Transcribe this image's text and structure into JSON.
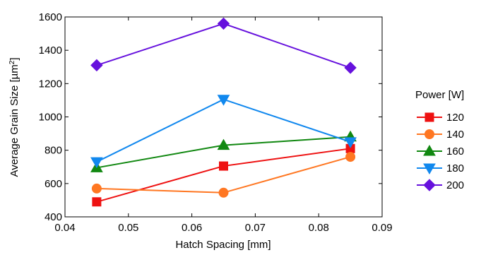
{
  "chart_data": {
    "type": "line",
    "xlabel": "Hatch Spacing [mm]",
    "ylabel_main": "Average Grain Size [µm",
    "ylabel_sup": "2",
    "ylabel_end": "]",
    "xlim": [
      0.04,
      0.09
    ],
    "ylim": [
      400,
      1600
    ],
    "xticks": [
      0.04,
      0.05,
      0.06,
      0.07,
      0.08,
      0.09
    ],
    "xtick_labels": [
      "0.04",
      "0.05",
      "0.06",
      "0.07",
      "0.08",
      "0.09"
    ],
    "yticks": [
      400,
      600,
      800,
      1000,
      1200,
      1400,
      1600
    ],
    "ytick_labels": [
      "400",
      "600",
      "800",
      "1000",
      "1200",
      "1400",
      "1600"
    ],
    "grid": false,
    "legend_title": "Power [W]",
    "legend_position": "right",
    "x": [
      0.045,
      0.065,
      0.085
    ],
    "series": [
      {
        "name": "120",
        "values": [
          490,
          705,
          810
        ],
        "color": "#ee1111",
        "marker": "square"
      },
      {
        "name": "140",
        "values": [
          570,
          545,
          760
        ],
        "color": "#ff7722",
        "marker": "circle"
      },
      {
        "name": "160",
        "values": [
          695,
          830,
          880
        ],
        "color": "#118811",
        "marker": "triangle-up"
      },
      {
        "name": "180",
        "values": [
          730,
          1105,
          850
        ],
        "color": "#1188ee",
        "marker": "triangle-down"
      },
      {
        "name": "200",
        "values": [
          1310,
          1560,
          1295
        ],
        "color": "#6611dd",
        "marker": "diamond"
      }
    ]
  }
}
